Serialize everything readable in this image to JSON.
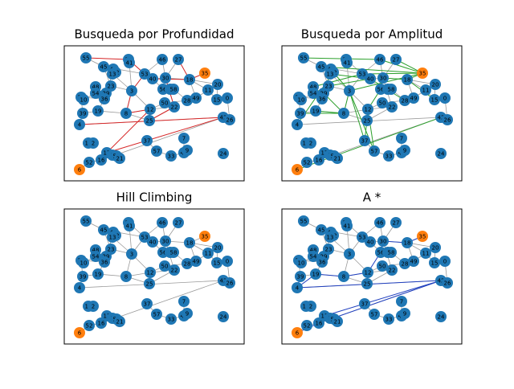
{
  "panels": [
    {
      "title": "Busqueda por Profundidad",
      "path_color": "#d62728"
    },
    {
      "title": "Busqueda por Amplitud",
      "path_color": "#2ca02c"
    },
    {
      "title": "Hill Climbing",
      "path_color": "#d62728"
    },
    {
      "title": "A *",
      "path_color": "#1f3fbf"
    }
  ],
  "node_color": "#1f77b4",
  "highlight_color": "#ff7f0e",
  "nodes": [
    "55",
    "45",
    "47",
    "32",
    "13",
    "31",
    "41",
    "53",
    "40",
    "46",
    "27",
    "30",
    "35",
    "18",
    "20",
    "11",
    "15",
    "0",
    "48",
    "23",
    "3",
    "29",
    "54",
    "36",
    "38",
    "10",
    "56",
    "1",
    "58",
    "28",
    "49",
    "50",
    "19",
    "39",
    "8",
    "12",
    "22",
    "25",
    "42",
    "26",
    "4",
    "7",
    "37",
    "14",
    "2",
    "57",
    "33",
    "43",
    "9",
    "24",
    "17",
    "5",
    "51",
    "21",
    "16",
    "52",
    "6"
  ]
}
